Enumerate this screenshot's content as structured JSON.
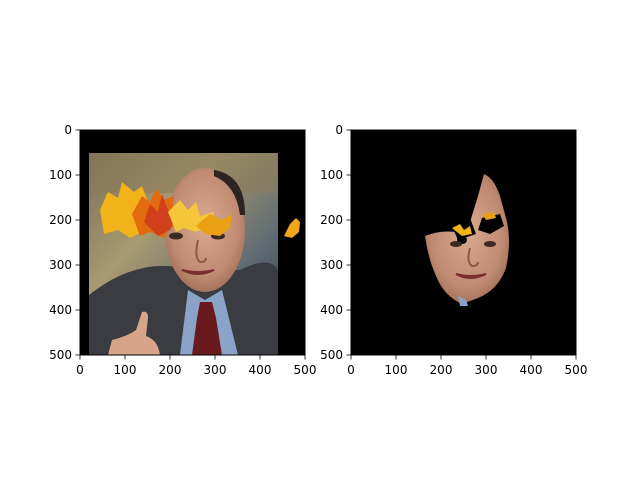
{
  "chart_data": [
    {
      "type": "image",
      "xlim": [
        0,
        500
      ],
      "ylim": [
        500,
        0
      ],
      "xticks": [
        0,
        100,
        200,
        300,
        400,
        500
      ],
      "yticks": [
        0,
        100,
        200,
        300,
        400,
        500
      ],
      "xtick_labels": [
        "0",
        "100",
        "200",
        "300",
        "400",
        "500"
      ],
      "ytick_labels": [
        "0",
        "100",
        "200",
        "300",
        "400",
        "500"
      ],
      "grid": false,
      "content": "portrait photo with autumn-leaf cutouts over the forehead and a small leaf at the right edge"
    },
    {
      "type": "image",
      "xlim": [
        0,
        500
      ],
      "ylim": [
        500,
        0
      ],
      "xticks": [
        0,
        100,
        200,
        300,
        400,
        500
      ],
      "yticks": [
        0,
        100,
        200,
        300,
        400,
        500
      ],
      "xtick_labels": [
        "0",
        "100",
        "200",
        "300",
        "400",
        "500"
      ],
      "ytick_labels": [
        "0",
        "100",
        "200",
        "300",
        "400",
        "500"
      ],
      "grid": false,
      "content": "face-only mask on black background"
    }
  ],
  "colors": {
    "background": "#000000",
    "skin": "#c9977f",
    "suit": "#3a3c42",
    "shirt": "#8aa3c8",
    "tie": "#6a1a1c",
    "hair": "#2b2420",
    "leaf_yellow": "#f2b21a",
    "leaf_orange": "#e46a10",
    "leaf_red": "#d0401a"
  }
}
